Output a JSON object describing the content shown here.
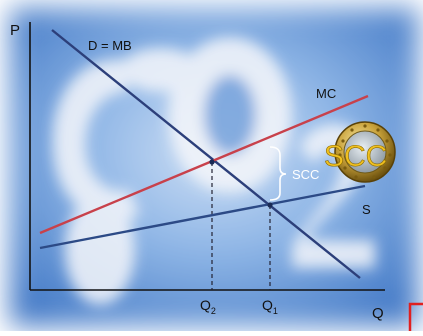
{
  "axes": {
    "y_label": "P",
    "x_label": "Q"
  },
  "curves": {
    "demand_label": "D = MB",
    "mc_label": "MC",
    "supply_label": "S",
    "scc_brace_label": "SCC"
  },
  "quantities": {
    "q2_main": "Q",
    "q2_sub": "2",
    "q1_main": "Q",
    "q1_sub": "1"
  },
  "coin": {
    "label": "SCC"
  },
  "colors": {
    "demand": "#2c3f7a",
    "mc": "#c8414b",
    "supply": "#2c4a86",
    "sky": "#5b8fd6",
    "coin_text": "#f0c020",
    "accent_red": "#e02020"
  }
}
